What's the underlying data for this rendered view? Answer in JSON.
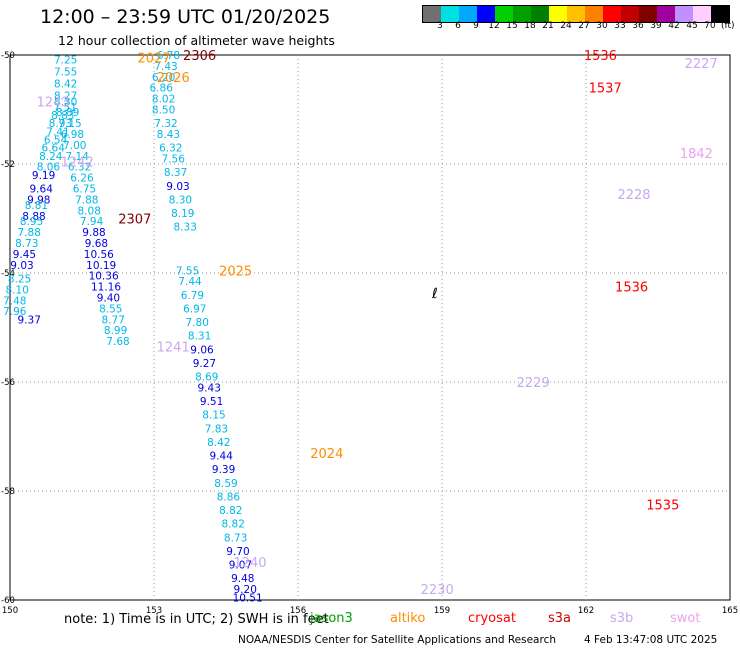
{
  "header": {
    "title": "12:00 – 23:59 UTC 01/20/2025",
    "subtitle": "12 hour collection of altimeter wave heights"
  },
  "color_scale": {
    "labels": [
      "3",
      "6",
      "9",
      "12",
      "15",
      "18",
      "21",
      "24",
      "27",
      "30",
      "33",
      "36",
      "39",
      "42",
      "45",
      "70"
    ],
    "unit": "(ft)",
    "colors": [
      "#707070",
      "#00e0e0",
      "#00a8ff",
      "#0000ff",
      "#00d000",
      "#00a000",
      "#008000",
      "#ffff00",
      "#ffc000",
      "#ff8000",
      "#ff0000",
      "#c00000",
      "#800000",
      "#a000a0",
      "#c090ff",
      "#ffd0ff",
      "#000000"
    ]
  },
  "footer": {
    "note": "note: 1) Time is in UTC; 2) SWH is in feet",
    "missions": [
      {
        "name": "jason3",
        "color": "#00a000"
      },
      {
        "name": "altiko",
        "color": "#ff8c00"
      },
      {
        "name": "cryosat",
        "color": "#ff0000"
      },
      {
        "name": "s3a",
        "color": "#cc0000"
      },
      {
        "name": "s3b",
        "color": "#c8a8f0"
      },
      {
        "name": "swot",
        "color": "#f0a0f0"
      }
    ],
    "credit": "NOAA/NESDIS Center for Satellite Applications and Research",
    "generated": "4 Feb 13:47:08 UTC 2025"
  },
  "chart_data": {
    "type": "scatter",
    "title": "12:00 – 23:59 UTC 01/20/2025",
    "xlabel": "",
    "ylabel": "",
    "xlim": [
      150,
      165
    ],
    "ylim": [
      -60,
      -50
    ],
    "x_ticks": [
      "150",
      "153",
      "156",
      "159",
      "162",
      "165"
    ],
    "y_ticks": [
      "-50",
      "-52",
      "-54",
      "-56",
      "-58",
      "-60"
    ],
    "grid": "dotted",
    "overpass_times": [
      {
        "text": "2306",
        "lon": 153.95,
        "lat": -50.0,
        "color": "#800000"
      },
      {
        "text": "2027",
        "lon": 153.0,
        "lat": -50.05,
        "color": "#ff8c00"
      },
      {
        "text": "2026",
        "lon": 153.4,
        "lat": -50.4,
        "color": "#ff8c00"
      },
      {
        "text": "1243",
        "lon": 150.9,
        "lat": -50.85,
        "color": "#c8a8f0"
      },
      {
        "text": "1242",
        "lon": 151.4,
        "lat": -51.95,
        "color": "#c8a8f0"
      },
      {
        "text": "2307",
        "lon": 152.6,
        "lat": -53.0,
        "color": "#800000"
      },
      {
        "text": "2025",
        "lon": 154.7,
        "lat": -53.95,
        "color": "#ff8c00"
      },
      {
        "text": "1241",
        "lon": 153.4,
        "lat": -55.35,
        "color": "#c8a8f0"
      },
      {
        "text": "2024",
        "lon": 156.6,
        "lat": -57.3,
        "color": "#ff8c00"
      },
      {
        "text": "1240",
        "lon": 155.0,
        "lat": -59.3,
        "color": "#c8a8f0"
      },
      {
        "text": "2230",
        "lon": 158.9,
        "lat": -59.8,
        "color": "#c8a8f0"
      },
      {
        "text": "2229",
        "lon": 160.9,
        "lat": -56.0,
        "color": "#c8a8f0"
      },
      {
        "text": "1536",
        "lon": 162.3,
        "lat": -50.0,
        "color": "#ff0000"
      },
      {
        "text": "1537",
        "lon": 162.4,
        "lat": -50.6,
        "color": "#ff0000"
      },
      {
        "text": "1536",
        "lon": 162.95,
        "lat": -54.25,
        "color": "#ff0000"
      },
      {
        "text": "1535",
        "lon": 163.6,
        "lat": -58.25,
        "color": "#ff0000"
      },
      {
        "text": "2227",
        "lon": 164.4,
        "lat": -50.15,
        "color": "#c8a8f0"
      },
      {
        "text": "1842",
        "lon": 164.3,
        "lat": -51.8,
        "color": "#f0a0f0"
      },
      {
        "text": "2228",
        "lon": 163.0,
        "lat": -52.55,
        "color": "#c8a8f0"
      }
    ],
    "tracks": [
      {
        "name": "",
        "points": [
          {
            "lon": 151.16,
            "lat": -50.08,
            "swh": "7.25",
            "color": "#00b8e8"
          },
          {
            "lon": 151.16,
            "lat": -50.3,
            "swh": "7.55",
            "color": "#00b8e8"
          },
          {
            "lon": 151.16,
            "lat": -50.52,
            "swh": "8.42",
            "color": "#00b8e8"
          },
          {
            "lon": 151.16,
            "lat": -50.74,
            "swh": "8.27",
            "color": "#00b8e8"
          },
          {
            "lon": 151.15,
            "lat": -50.95,
            "swh": "7.51",
            "color": "#00b8e8"
          },
          {
            "lon": 151.1,
            "lat": -51.1,
            "swh": "8.83",
            "color": "#00b8e8"
          },
          {
            "lon": 151.05,
            "lat": -51.25,
            "swh": "8.93",
            "color": "#00b8e8"
          },
          {
            "lon": 151.0,
            "lat": -51.4,
            "swh": "7.41",
            "color": "#00b8e8"
          },
          {
            "lon": 150.95,
            "lat": -51.55,
            "swh": "6.54",
            "color": "#00b8e8"
          },
          {
            "lon": 150.9,
            "lat": -51.7,
            "swh": "6.64",
            "color": "#00b8e8"
          },
          {
            "lon": 150.85,
            "lat": -51.85,
            "swh": "8.24",
            "color": "#00b8e8"
          },
          {
            "lon": 150.8,
            "lat": -52.05,
            "swh": "8.06",
            "color": "#00b8e8"
          },
          {
            "lon": 150.7,
            "lat": -52.2,
            "swh": "9.19",
            "color": "#0000e0"
          },
          {
            "lon": 150.65,
            "lat": -52.45,
            "swh": "9.64",
            "color": "#0000e0"
          },
          {
            "lon": 150.6,
            "lat": -52.65,
            "swh": "9.98",
            "color": "#0000e0"
          },
          {
            "lon": 150.55,
            "lat": -52.75,
            "swh": "8.81",
            "color": "#00b8e8"
          },
          {
            "lon": 150.5,
            "lat": -52.95,
            "swh": "8.88",
            "color": "#0000e0"
          },
          {
            "lon": 150.45,
            "lat": -53.05,
            "swh": "8.95",
            "color": "#00b8e8"
          },
          {
            "lon": 150.4,
            "lat": -53.25,
            "swh": "7.88",
            "color": "#00b8e8"
          },
          {
            "lon": 150.35,
            "lat": -53.45,
            "swh": "8.73",
            "color": "#00b8e8"
          },
          {
            "lon": 150.3,
            "lat": -53.65,
            "swh": "9.45",
            "color": "#0000e0"
          },
          {
            "lon": 150.25,
            "lat": -53.85,
            "swh": "9.03",
            "color": "#0000e0"
          },
          {
            "lon": 150.2,
            "lat": -54.1,
            "swh": "8.25",
            "color": "#00b8e8"
          },
          {
            "lon": 150.15,
            "lat": -54.3,
            "swh": "8.10",
            "color": "#00b8e8"
          },
          {
            "lon": 150.1,
            "lat": -54.5,
            "swh": "7.48",
            "color": "#00b8e8"
          },
          {
            "lon": 150.1,
            "lat": -54.7,
            "swh": "7.96",
            "color": "#00b8e8"
          },
          {
            "lon": 150.4,
            "lat": -54.85,
            "swh": "9.37",
            "color": "#0000e0"
          }
        ]
      },
      {
        "name": "",
        "points": [
          {
            "lon": 151.16,
            "lat": -50.85,
            "swh": "8.30",
            "color": "#00b8e8"
          },
          {
            "lon": 151.2,
            "lat": -51.05,
            "swh": "8.89",
            "color": "#00b8e8"
          },
          {
            "lon": 151.25,
            "lat": -51.25,
            "swh": "7.15",
            "color": "#00b8e8"
          },
          {
            "lon": 151.3,
            "lat": -51.45,
            "swh": "6.98",
            "color": "#00b8e8"
          },
          {
            "lon": 151.35,
            "lat": -51.65,
            "swh": "7.00",
            "color": "#00b8e8"
          },
          {
            "lon": 151.4,
            "lat": -51.85,
            "swh": "7.14",
            "color": "#00b8e8"
          },
          {
            "lon": 151.45,
            "lat": -52.05,
            "swh": "6.32",
            "color": "#00b8e8"
          },
          {
            "lon": 151.5,
            "lat": -52.25,
            "swh": "6.26",
            "color": "#00b8e8"
          },
          {
            "lon": 151.55,
            "lat": -52.45,
            "swh": "6.75",
            "color": "#00b8e8"
          },
          {
            "lon": 151.6,
            "lat": -52.65,
            "swh": "7.88",
            "color": "#00b8e8"
          },
          {
            "lon": 151.65,
            "lat": -52.85,
            "swh": "8.08",
            "color": "#00b8e8"
          },
          {
            "lon": 151.7,
            "lat": -53.05,
            "swh": "7.94",
            "color": "#00b8e8"
          },
          {
            "lon": 151.75,
            "lat": -53.25,
            "swh": "9.88",
            "color": "#0000e0"
          },
          {
            "lon": 151.8,
            "lat": -53.45,
            "swh": "9.68",
            "color": "#0000e0"
          },
          {
            "lon": 151.85,
            "lat": -53.65,
            "swh": "10.56",
            "color": "#0000e0"
          },
          {
            "lon": 151.9,
            "lat": -53.85,
            "swh": "10.19",
            "color": "#0000e0"
          },
          {
            "lon": 151.95,
            "lat": -54.05,
            "swh": "10.36",
            "color": "#0000e0"
          },
          {
            "lon": 152.0,
            "lat": -54.25,
            "swh": "11.16",
            "color": "#0000e0"
          },
          {
            "lon": 152.05,
            "lat": -54.45,
            "swh": "9.40",
            "color": "#0000e0"
          },
          {
            "lon": 152.1,
            "lat": -54.65,
            "swh": "8.55",
            "color": "#00b8e8"
          },
          {
            "lon": 152.15,
            "lat": -54.85,
            "swh": "8.77",
            "color": "#00b8e8"
          },
          {
            "lon": 152.2,
            "lat": -55.05,
            "swh": "8.99",
            "color": "#00b8e8"
          },
          {
            "lon": 152.25,
            "lat": -55.25,
            "swh": "7.68",
            "color": "#00b8e8"
          }
        ]
      },
      {
        "name": "",
        "points": [
          {
            "lon": 153.3,
            "lat": -50.0,
            "swh": "6.78",
            "color": "#00b8e8"
          },
          {
            "lon": 153.25,
            "lat": -50.2,
            "swh": "7.43",
            "color": "#00b8e8"
          },
          {
            "lon": 153.2,
            "lat": -50.4,
            "swh": "6.20",
            "color": "#00b8e8"
          },
          {
            "lon": 153.15,
            "lat": -50.6,
            "swh": "6.86",
            "color": "#00b8e8"
          },
          {
            "lon": 153.2,
            "lat": -50.8,
            "swh": "8.02",
            "color": "#00b8e8"
          },
          {
            "lon": 153.2,
            "lat": -51.0,
            "swh": "8.50",
            "color": "#00b8e8"
          },
          {
            "lon": 153.25,
            "lat": -51.25,
            "swh": "7.32",
            "color": "#00b8e8"
          },
          {
            "lon": 153.3,
            "lat": -51.45,
            "swh": "8.43",
            "color": "#00b8e8"
          },
          {
            "lon": 153.35,
            "lat": -51.7,
            "swh": "6.32",
            "color": "#00b8e8"
          },
          {
            "lon": 153.4,
            "lat": -51.9,
            "swh": "7.56",
            "color": "#00b8e8"
          },
          {
            "lon": 153.45,
            "lat": -52.15,
            "swh": "8.37",
            "color": "#00b8e8"
          },
          {
            "lon": 153.5,
            "lat": -52.4,
            "swh": "9.03",
            "color": "#0000e0"
          },
          {
            "lon": 153.55,
            "lat": -52.65,
            "swh": "8.30",
            "color": "#00b8e8"
          },
          {
            "lon": 153.6,
            "lat": -52.9,
            "swh": "8.19",
            "color": "#00b8e8"
          },
          {
            "lon": 153.65,
            "lat": -53.15,
            "swh": "8.33",
            "color": "#00b8e8"
          },
          {
            "lon": 153.7,
            "lat": -53.95,
            "swh": "7.55",
            "color": "#00b8e8"
          },
          {
            "lon": 153.75,
            "lat": -54.15,
            "swh": "7.44",
            "color": "#00b8e8"
          },
          {
            "lon": 153.8,
            "lat": -54.4,
            "swh": "6.79",
            "color": "#00b8e8"
          },
          {
            "lon": 153.85,
            "lat": -54.65,
            "swh": "6.97",
            "color": "#00b8e8"
          },
          {
            "lon": 153.9,
            "lat": -54.9,
            "swh": "7.80",
            "color": "#00b8e8"
          },
          {
            "lon": 153.95,
            "lat": -55.15,
            "swh": "8.31",
            "color": "#00b8e8"
          },
          {
            "lon": 154.0,
            "lat": -55.4,
            "swh": "9.06",
            "color": "#0000e0"
          },
          {
            "lon": 154.05,
            "lat": -55.65,
            "swh": "9.27",
            "color": "#0000e0"
          },
          {
            "lon": 154.1,
            "lat": -55.9,
            "swh": "8.69",
            "color": "#00b8e8"
          },
          {
            "lon": 154.15,
            "lat": -56.1,
            "swh": "9.43",
            "color": "#0000e0"
          },
          {
            "lon": 154.2,
            "lat": -56.35,
            "swh": "9.51",
            "color": "#0000e0"
          },
          {
            "lon": 154.25,
            "lat": -56.6,
            "swh": "8.15",
            "color": "#00b8e8"
          },
          {
            "lon": 154.3,
            "lat": -56.85,
            "swh": "7.83",
            "color": "#00b8e8"
          },
          {
            "lon": 154.35,
            "lat": -57.1,
            "swh": "8.42",
            "color": "#00b8e8"
          },
          {
            "lon": 154.4,
            "lat": -57.35,
            "swh": "9.44",
            "color": "#0000e0"
          },
          {
            "lon": 154.45,
            "lat": -57.6,
            "swh": "9.39",
            "color": "#0000e0"
          },
          {
            "lon": 154.5,
            "lat": -57.85,
            "swh": "8.59",
            "color": "#00b8e8"
          },
          {
            "lon": 154.55,
            "lat": -58.1,
            "swh": "8.86",
            "color": "#00b8e8"
          },
          {
            "lon": 154.6,
            "lat": -58.35,
            "swh": "8.82",
            "color": "#00b8e8"
          },
          {
            "lon": 154.65,
            "lat": -58.6,
            "swh": "8.82",
            "color": "#00b8e8"
          },
          {
            "lon": 154.7,
            "lat": -58.85,
            "swh": "8.73",
            "color": "#00b8e8"
          },
          {
            "lon": 154.75,
            "lat": -59.1,
            "swh": "9.70",
            "color": "#0000e0"
          },
          {
            "lon": 154.8,
            "lat": -59.35,
            "swh": "9.07",
            "color": "#0000e0"
          },
          {
            "lon": 154.85,
            "lat": -59.6,
            "swh": "9.48",
            "color": "#0000e0"
          },
          {
            "lon": 154.9,
            "lat": -59.8,
            "swh": "9.20",
            "color": "#0000e0"
          },
          {
            "lon": 154.95,
            "lat": -59.95,
            "swh": "10.51",
            "color": "#0000e0"
          }
        ]
      }
    ]
  }
}
